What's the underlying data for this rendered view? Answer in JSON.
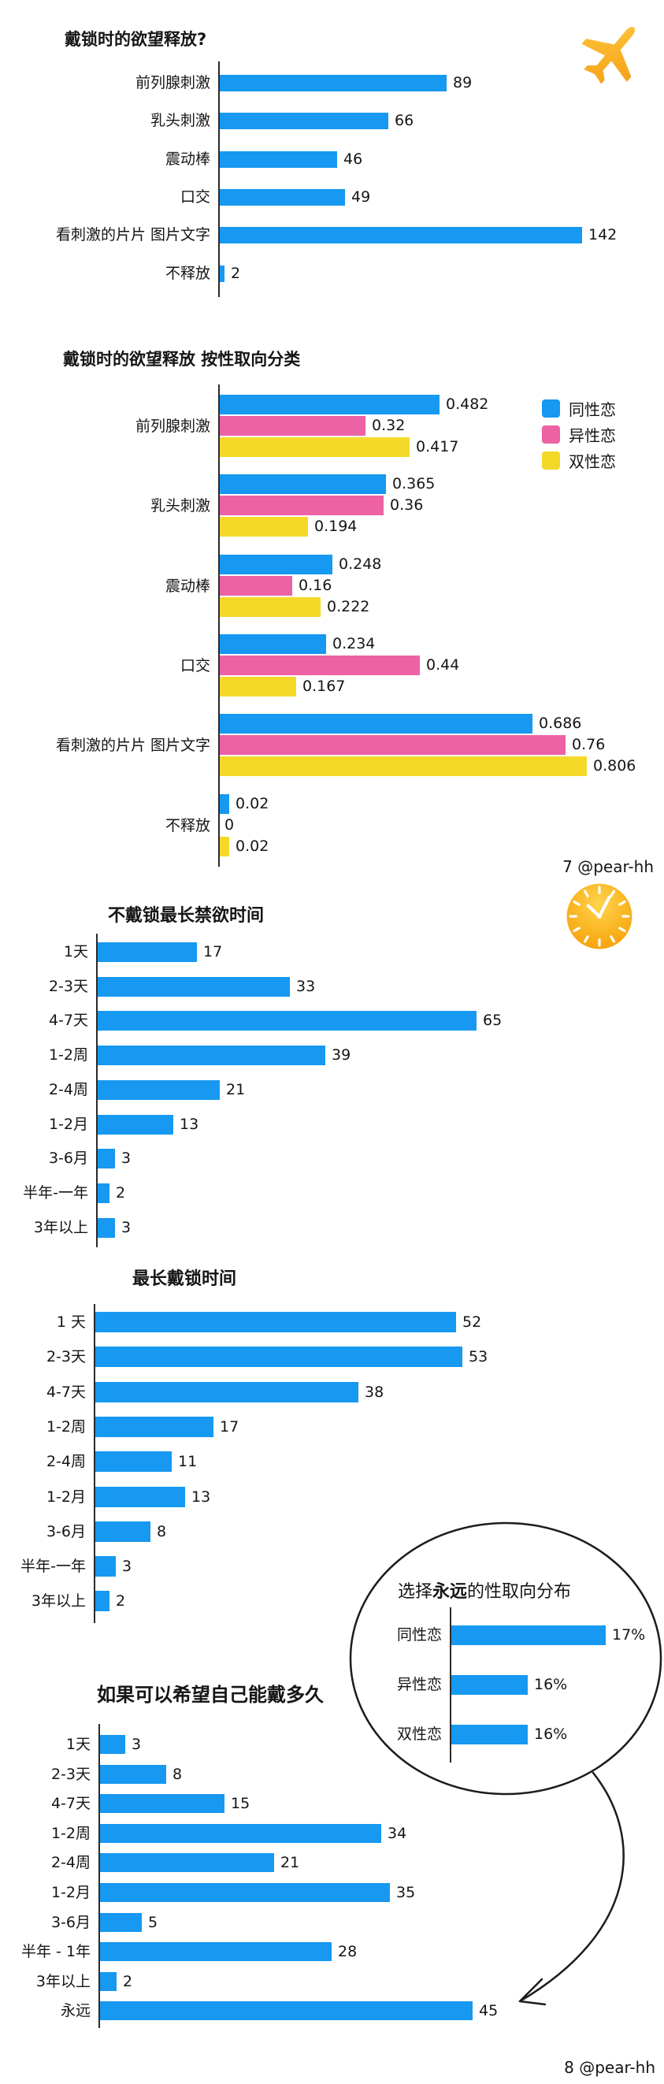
{
  "colors": {
    "blue": "#1798F1",
    "pink": "#EC62A5",
    "yellow": "#F4D929",
    "axis": "#2a2a2a",
    "text": "#151515",
    "outline": "#1c1c1c",
    "icon_orange_light": "#FFD44D",
    "icon_orange_dark": "#F59B00"
  },
  "footers": {
    "page7": "7 @pear-hh",
    "page8": "8 @pear-hh"
  },
  "icons": {
    "airplane": "airplane",
    "clock": "clock"
  },
  "chart_data": [
    {
      "id": "desire-release",
      "type": "bar",
      "title": "戴锁时的欲望释放?",
      "categories": [
        "前列腺刺激",
        "乳头刺激",
        "震动棒",
        "口交",
        "看刺激的片片 图片文字",
        "不释放"
      ],
      "values": [
        89,
        66,
        46,
        49,
        142,
        2
      ],
      "xlim": [
        0,
        150
      ],
      "grid": false,
      "orientation": "horizontal"
    },
    {
      "id": "desire-release-by-orientation",
      "type": "bar",
      "title": "戴锁时的欲望释放 按性取向分类",
      "categories": [
        "前列腺刺激",
        "乳头刺激",
        "震动棒",
        "口交",
        "看刺激的片片 图片文字",
        "不释放"
      ],
      "series": [
        {
          "name": "同性恋",
          "color": "blue",
          "values": [
            0.482,
            0.365,
            0.248,
            0.234,
            0.686,
            0.02
          ]
        },
        {
          "name": "异性恋",
          "color": "pink",
          "values": [
            0.32,
            0.36,
            0.16,
            0.44,
            0.76,
            0
          ]
        },
        {
          "name": "双性恋",
          "color": "yellow",
          "values": [
            0.417,
            0.194,
            0.222,
            0.167,
            0.806,
            0.02
          ]
        }
      ],
      "legend_position": "top-right",
      "xlim": [
        0,
        0.85
      ],
      "grid": false,
      "orientation": "horizontal"
    },
    {
      "id": "longest-abstinence-unlocked",
      "type": "bar",
      "title": "不戴锁最长禁欲时间",
      "categories": [
        "1天",
        "2-3天",
        "4-7天",
        "1-2周",
        "2-4周",
        "1-2月",
        "3-6月",
        "半年-一年",
        "3年以上"
      ],
      "values": [
        17,
        33,
        65,
        39,
        21,
        13,
        3,
        2,
        3
      ],
      "xlim": [
        0,
        68
      ],
      "grid": false,
      "orientation": "horizontal"
    },
    {
      "id": "longest-locked-time",
      "type": "bar",
      "title": "最长戴锁时间",
      "categories": [
        "1 天",
        "2-3天",
        "4-7天",
        "1-2周",
        "2-4周",
        "1-2月",
        "3-6月",
        "半年-一年",
        "3年以上"
      ],
      "values": [
        52,
        53,
        38,
        17,
        11,
        13,
        8,
        3,
        2
      ],
      "xlim": [
        0,
        56
      ],
      "grid": false,
      "orientation": "horizontal"
    },
    {
      "id": "forever-orientation-inset",
      "type": "bar",
      "title_prefix": "选择",
      "title_bold": "永远",
      "title_suffix": "的性取向分布",
      "categories": [
        "同性恋",
        "异性恋",
        "双性恋"
      ],
      "values": [
        17,
        16,
        16
      ],
      "value_labels": [
        "17%",
        "16%",
        "16%"
      ],
      "grid": false,
      "orientation": "horizontal"
    },
    {
      "id": "wish-wear-duration",
      "type": "bar",
      "title": "如果可以希望自己能戴多久",
      "categories": [
        "1天",
        "2-3天",
        "4-7天",
        "1-2周",
        "2-4周",
        "1-2月",
        "3-6月",
        "半年 - 1年",
        "3年以上",
        "永远"
      ],
      "values": [
        3,
        8,
        15,
        34,
        21,
        35,
        5,
        28,
        2,
        45
      ],
      "xlim": [
        0,
        47
      ],
      "grid": false,
      "orientation": "horizontal"
    }
  ]
}
